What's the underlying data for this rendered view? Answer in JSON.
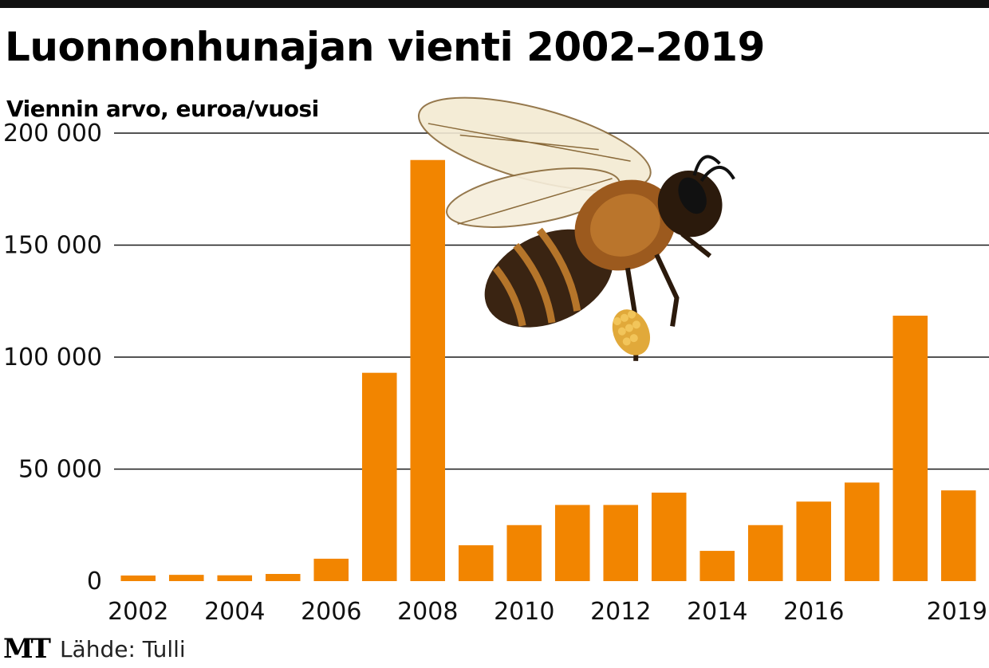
{
  "header": {
    "title": "Luonnonhunajan vienti 2002–2019",
    "subtitle": "Viennin arvo, euroa/vuosi"
  },
  "footer": {
    "logo": "MT",
    "source": "Lähde: Tulli"
  },
  "colors": {
    "bar": "#f28500",
    "grid": "#1a1a1a",
    "topbar": "#111111"
  },
  "illustration": "bee-illustration",
  "chart_data": {
    "type": "bar",
    "title": "Luonnonhunajan vienti 2002–2019",
    "ylabel": "Viennin arvo, euroa/vuosi",
    "ylim": [
      0,
      200000
    ],
    "yticks": [
      0,
      50000,
      100000,
      150000,
      200000
    ],
    "ytick_labels": [
      "0",
      "50 000",
      "100 000",
      "150 000",
      "200 000"
    ],
    "xtick_labels": [
      "2002",
      "2004",
      "2006",
      "2008",
      "2010",
      "2012",
      "2014",
      "2016",
      "2019"
    ],
    "categories": [
      "2002",
      "2003",
      "2004",
      "2005",
      "2006",
      "2007",
      "2008",
      "2009",
      "2010",
      "2011",
      "2012",
      "2013",
      "2014",
      "2015",
      "2016",
      "2017",
      "2018",
      "2019"
    ],
    "values": [
      2500,
      2800,
      2600,
      3200,
      10000,
      93000,
      188000,
      16000,
      25000,
      34000,
      34000,
      39500,
      13500,
      25000,
      35500,
      44000,
      118500,
      40500
    ],
    "grid": true
  }
}
